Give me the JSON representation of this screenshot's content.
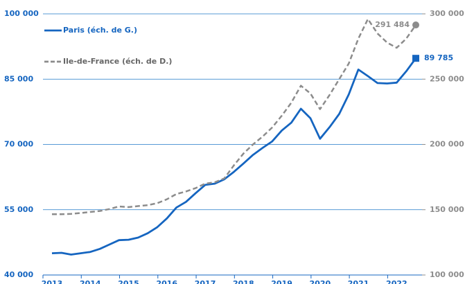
{
  "chart_data": {
    "type": "line",
    "categories": [
      "2013",
      null,
      null,
      null,
      "2014",
      null,
      null,
      null,
      "2015",
      null,
      null,
      null,
      "2016",
      null,
      null,
      null,
      "2017",
      null,
      null,
      null,
      "2018",
      null,
      null,
      null,
      "2019",
      null,
      null,
      null,
      "2020",
      null,
      null,
      null,
      "2021",
      null,
      null,
      null,
      "2022",
      null,
      null
    ],
    "series": [
      {
        "name": "Paris (éch. de G.)",
        "color": "#1565c0",
        "dash": false,
        "marker": "square",
        "values": [
          45000,
          45100,
          44700,
          45000,
          45300,
          46000,
          47000,
          48000,
          48100,
          48600,
          49600,
          51000,
          53000,
          55500,
          56800,
          58800,
          60700,
          61000,
          62000,
          63700,
          65600,
          67600,
          69200,
          70700,
          73200,
          75000,
          78200,
          76000,
          71300,
          74000,
          77000,
          81500,
          87200,
          85700,
          84100,
          84000,
          84200,
          86800,
          89785
        ],
        "value_labels": [
          null,
          null,
          null,
          null,
          null,
          null,
          null,
          null,
          null,
          null,
          null,
          null,
          null,
          null,
          null,
          null,
          null,
          null,
          null,
          null,
          null,
          null,
          null,
          null,
          null,
          null,
          null,
          null,
          null,
          null,
          null,
          null,
          null,
          null,
          null,
          null,
          null,
          null,
          "89 785"
        ]
      },
      {
        "name": "Ile-de-France (éch. de D.)",
        "color": "#8c8c8c",
        "dash": true,
        "marker": "circle",
        "axis": "y2",
        "values": [
          146500,
          146500,
          146800,
          147500,
          148300,
          149000,
          150500,
          152500,
          152000,
          152800,
          153500,
          155000,
          158000,
          162000,
          164000,
          166500,
          170000,
          171000,
          174000,
          184000,
          193000,
          200000,
          206000,
          213000,
          222000,
          232000,
          245000,
          239000,
          227000,
          238000,
          250000,
          262000,
          281000,
          296000,
          285000,
          278000,
          274000,
          281000,
          291484
        ],
        "value_labels": [
          null,
          null,
          null,
          null,
          null,
          null,
          null,
          null,
          null,
          null,
          null,
          null,
          null,
          null,
          null,
          null,
          null,
          null,
          null,
          null,
          null,
          null,
          null,
          null,
          null,
          null,
          null,
          null,
          null,
          null,
          null,
          null,
          null,
          null,
          null,
          null,
          null,
          null,
          "291 484"
        ]
      }
    ],
    "ylim": [
      40000,
      100000
    ],
    "yticks": [
      {
        "value": 40000,
        "label": "40 000"
      },
      {
        "value": 55000,
        "label": "55 000"
      },
      {
        "value": 70000,
        "label": "70 000"
      },
      {
        "value": 85000,
        "label": "85 000"
      },
      {
        "value": 100000,
        "label": "100 000"
      }
    ],
    "y2lim": [
      100000,
      300000
    ],
    "y2ticks": [
      {
        "value": 100000,
        "label": "100 000"
      },
      {
        "value": 150000,
        "label": "150 000"
      },
      {
        "value": 200000,
        "label": "200 000"
      },
      {
        "value": 250000,
        "label": "250 000"
      },
      {
        "value": 300000,
        "label": "300 000"
      }
    ],
    "grid": true,
    "legend": "top-left"
  }
}
